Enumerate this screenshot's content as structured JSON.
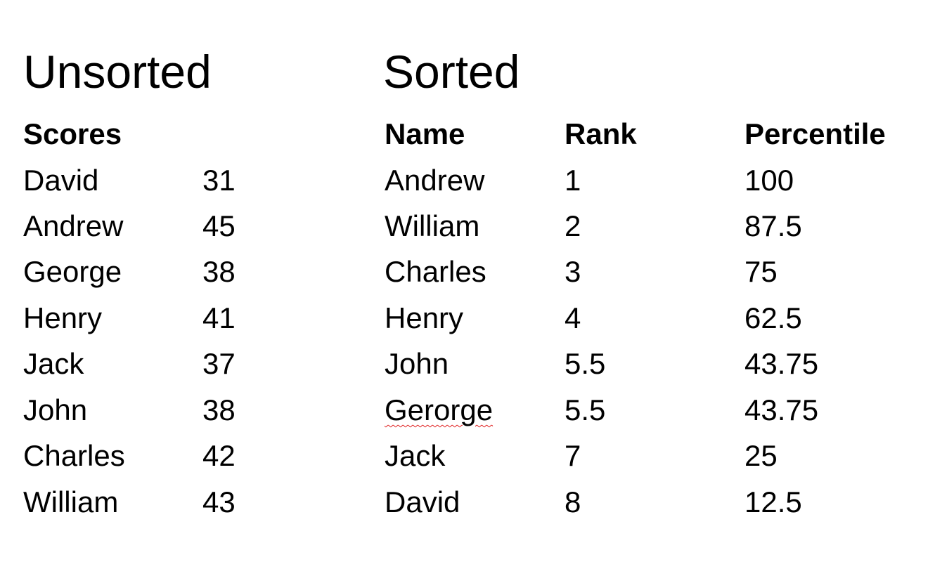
{
  "unsorted": {
    "title": "Unsorted",
    "header": "Scores",
    "rows": [
      {
        "name": "David",
        "score": "31"
      },
      {
        "name": "Andrew",
        "score": "45"
      },
      {
        "name": "George",
        "score": "38"
      },
      {
        "name": "Henry",
        "score": "41"
      },
      {
        "name": "Jack",
        "score": "37"
      },
      {
        "name": "John",
        "score": "38"
      },
      {
        "name": "Charles",
        "score": "42"
      },
      {
        "name": "William",
        "score": "43"
      }
    ]
  },
  "sorted": {
    "title": "Sorted",
    "headers": {
      "name": "Name",
      "rank": "Rank",
      "percentile": "Percentile"
    },
    "rows": [
      {
        "name": "Andrew",
        "rank": "1",
        "percentile": "100"
      },
      {
        "name": "William",
        "rank": "2",
        "percentile": "87.5"
      },
      {
        "name": "Charles",
        "rank": "3",
        "percentile": "75"
      },
      {
        "name": "Henry",
        "rank": "4",
        "percentile": "62.5"
      },
      {
        "name": "John",
        "rank": "5.5",
        "percentile": "43.75"
      },
      {
        "name": "Gerorge",
        "rank": "5.5",
        "percentile": "43.75"
      },
      {
        "name": "Jack",
        "rank": "7",
        "percentile": "25"
      },
      {
        "name": "David",
        "rank": "8",
        "percentile": "12.5"
      }
    ]
  }
}
